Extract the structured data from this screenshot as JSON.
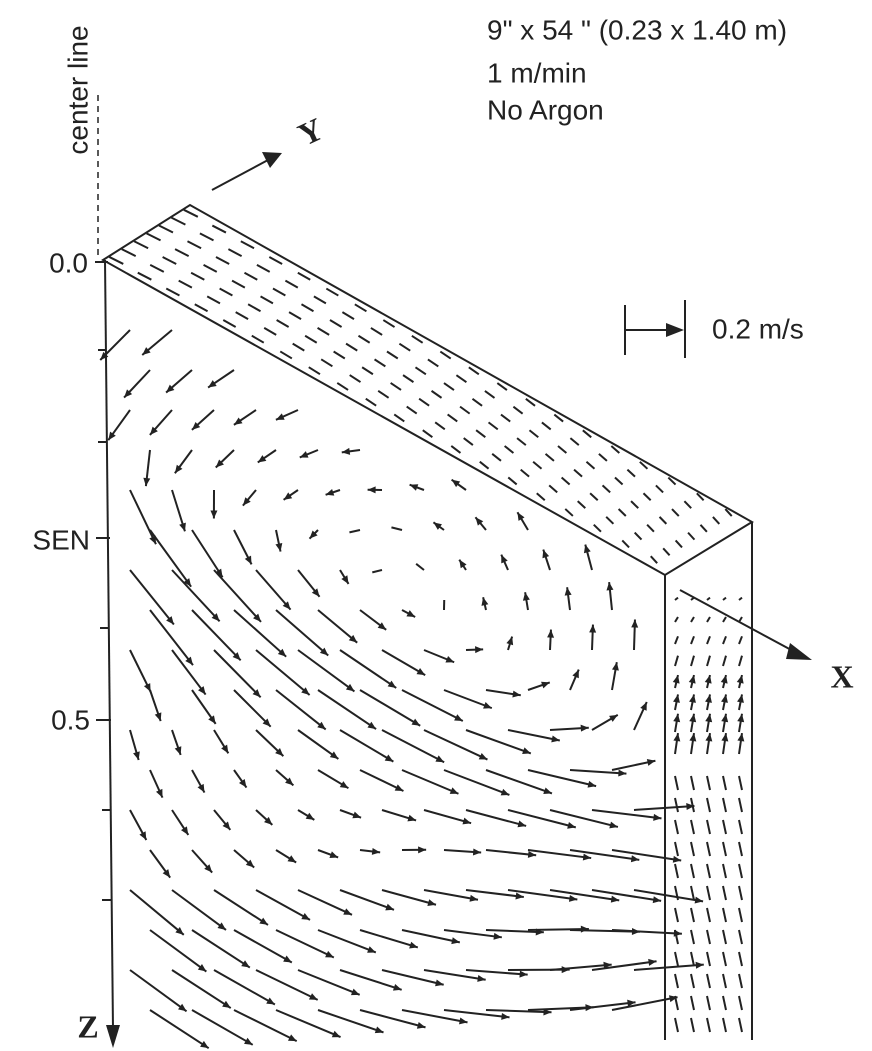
{
  "header": {
    "lines": [
      "9\" x 54 \" (0.23 x 1.40 m)",
      "1 m/min",
      "No Argon"
    ]
  },
  "axes": {
    "center_line": "center line",
    "y": "Y",
    "x": "X",
    "z": "Z"
  },
  "z_labels": [
    "0.0",
    "SEN",
    "0.5"
  ],
  "scale": {
    "label": "0.2 m/s"
  }
}
